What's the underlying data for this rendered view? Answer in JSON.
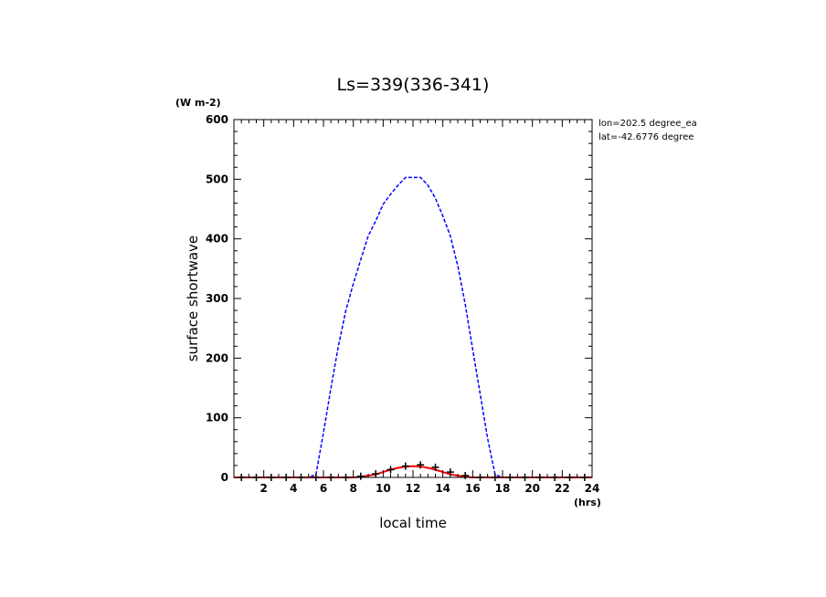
{
  "chart_data": {
    "type": "line",
    "title": "Ls=339(336-341)",
    "xlabel": "local time",
    "xunit": "(hrs)",
    "ylabel": "surface shortwave",
    "yunit": "(W m-2)",
    "xlim": [
      0,
      24
    ],
    "ylim": [
      0,
      600
    ],
    "x_ticks": [
      2,
      4,
      6,
      8,
      10,
      12,
      14,
      16,
      18,
      20,
      22,
      24
    ],
    "y_ticks": [
      0,
      100,
      200,
      300,
      400,
      500,
      600
    ],
    "grid": false,
    "info": [
      "lon=202.5 degree_ea",
      "lat=-42.6776 degree"
    ],
    "series": [
      {
        "color": "#0000ff",
        "style": "dashed",
        "x": [
          0,
          0.5,
          1.5,
          2.5,
          3.5,
          4.5,
          5.0,
          5.5,
          6.0,
          6.5,
          7.0,
          7.5,
          8.0,
          8.5,
          9.0,
          9.5,
          10.0,
          10.5,
          11.0,
          11.5,
          12.0,
          12.5,
          13.0,
          13.5,
          14.0,
          14.5,
          15.0,
          15.5,
          16.0,
          16.5,
          17.0,
          17.5,
          18.0,
          18.5,
          19.0,
          19.5,
          20.5,
          21.5,
          22.5,
          23.5,
          24.0
        ],
        "y": [
          0,
          0,
          0,
          0,
          0,
          0,
          0,
          5,
          75,
          150,
          220,
          280,
          325,
          365,
          405,
          430,
          458,
          475,
          490,
          503,
          503,
          503,
          490,
          468,
          438,
          405,
          355,
          290,
          215,
          140,
          65,
          5,
          0,
          0,
          0,
          0,
          0,
          0,
          0,
          0,
          0
        ]
      },
      {
        "color": "#ff0000",
        "style": "solid",
        "x": [
          0,
          1,
          2,
          3,
          4,
          5,
          6,
          7,
          8,
          8.5,
          9,
          9.5,
          10,
          10.5,
          11,
          11.5,
          12,
          12.5,
          13,
          13.5,
          14,
          14.5,
          15,
          15.5,
          16,
          17,
          18,
          19,
          20,
          21,
          22,
          23,
          24
        ],
        "y": [
          0,
          0,
          0,
          0,
          0,
          0,
          0,
          0,
          0,
          1,
          3,
          5,
          9,
          13,
          16,
          18,
          19,
          18,
          16,
          13,
          9,
          5,
          3,
          1,
          0,
          0,
          0,
          0,
          0,
          0,
          0,
          0,
          0
        ]
      },
      {
        "color": "#000000",
        "style": "markers",
        "marker": "+",
        "x": [
          0.5,
          1.5,
          2.5,
          3.5,
          4.5,
          5.5,
          6.5,
          7.5,
          8.5,
          9.5,
          10.5,
          11.5,
          12.5,
          13.5,
          14.5,
          15.5,
          16.5,
          17.5,
          18.5,
          19.5,
          20.5,
          21.5,
          22.5,
          23.5
        ],
        "y": [
          0,
          0,
          0,
          0,
          0,
          0,
          0,
          0,
          2,
          6,
          13,
          19,
          21,
          17,
          9,
          3,
          0,
          0,
          0,
          0,
          0,
          0,
          0,
          0
        ]
      }
    ]
  }
}
